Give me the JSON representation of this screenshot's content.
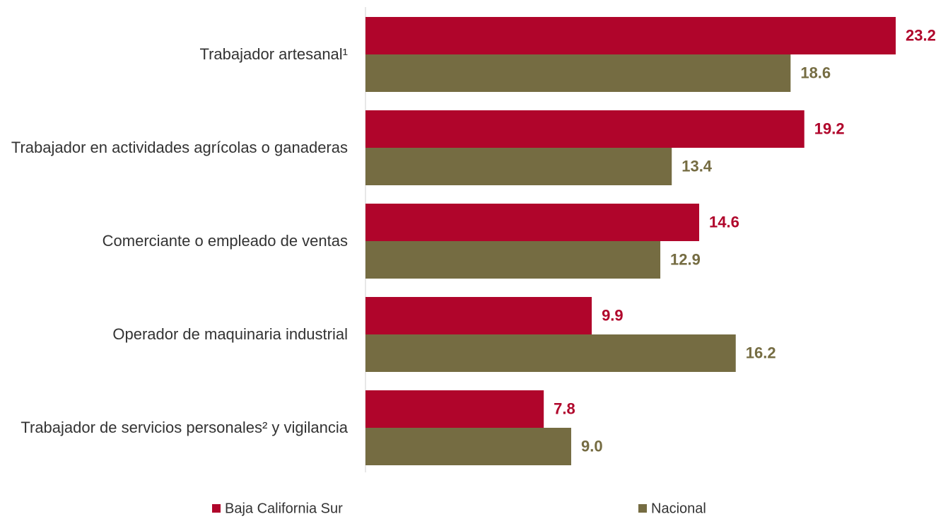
{
  "chart_data": {
    "type": "hbar",
    "categories": [
      "Trabajador artesanal¹",
      "Trabajador en actividades agrícolas o ganaderas",
      "Comerciante o empleado de ventas",
      "Operador de maquinaria industrial",
      "Trabajador de servicios personales² y vigilancia"
    ],
    "series": [
      {
        "name": "Baja California Sur",
        "color": "#b0052b",
        "values": [
          23.2,
          19.2,
          14.6,
          9.9,
          7.8
        ],
        "value_labels": [
          "23.2",
          "19.2",
          "14.6",
          "9.9",
          "7.8"
        ]
      },
      {
        "name": "Nacional",
        "color": "#756c42",
        "values": [
          18.6,
          13.4,
          12.9,
          16.2,
          9.0
        ],
        "value_labels": [
          "18.6",
          "13.4",
          "12.9",
          "16.2",
          "9.0"
        ]
      }
    ],
    "legend": "bottom"
  }
}
